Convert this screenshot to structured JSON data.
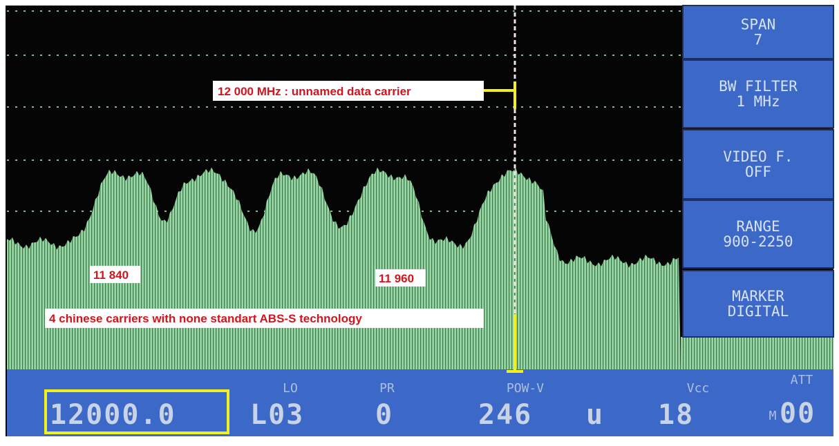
{
  "softkeys": [
    {
      "label": "SPAN",
      "value": "7"
    },
    {
      "label": "BW FILTER",
      "value": "1 MHz"
    },
    {
      "label": "VIDEO F.",
      "value": "OFF"
    },
    {
      "label": "RANGE",
      "value": "900-2250"
    },
    {
      "label": "MARKER",
      "value": "DIGITAL"
    }
  ],
  "status": {
    "frequency": "12000.0",
    "lo_label": "LO",
    "lo_value": "L03",
    "pr_label": "PR",
    "pr_value": "0",
    "pow_label": "POW-V",
    "pow_value": "246",
    "pow_unit": "u",
    "vcc_label": "Vcc",
    "vcc_value": "18",
    "att_label": "ATT",
    "att_prefix": "M",
    "att_value": "00"
  },
  "annotations": {
    "marker": "12 000 MHz : unnamed data carrier",
    "left_freq": "11 840",
    "mid_freq": "11 960",
    "carriers": "4 chinese carriers with none standart ABS-S technology"
  }
}
